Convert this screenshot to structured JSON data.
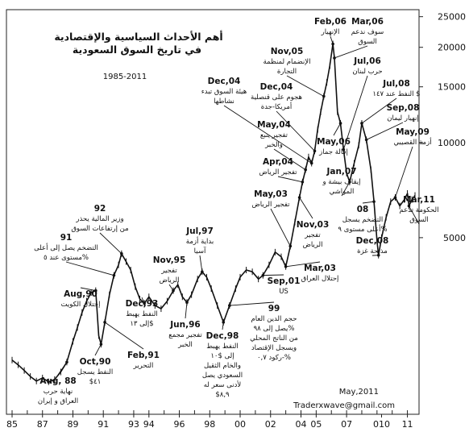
{
  "chart_data": {
    "type": "line",
    "title_line1": "أهم الأحداث السياسية والإقتصادية",
    "title_line2": "في تاريخ السوق السعودية",
    "period": "1985-2011",
    "credit_date": "May,2011",
    "credit_site": "Traderxwave@gmail.com",
    "xlim": [
      1985,
      2011.5
    ],
    "ylim": [
      1500,
      26000
    ],
    "scale": "log",
    "grid": false,
    "y_ticks": [
      5000,
      10000,
      15000,
      20000,
      25000
    ],
    "y_tick_labels": [
      "5000",
      "10000",
      "15000",
      "20000",
      "25000"
    ],
    "x_ticks": [
      {
        "pos": 1985,
        "label": "85"
      },
      {
        "pos": 1987,
        "label": "87"
      },
      {
        "pos": 1989,
        "label": "89"
      },
      {
        "pos": 1991,
        "label": "91"
      },
      {
        "pos": 1993,
        "label": "93"
      },
      {
        "pos": 1994,
        "label": "94"
      },
      {
        "pos": 1996,
        "label": "96"
      },
      {
        "pos": 1998,
        "label": "98"
      },
      {
        "pos": 2000,
        "label": "00"
      },
      {
        "pos": 2002,
        "label": "02"
      },
      {
        "pos": 2004,
        "label": "04"
      },
      {
        "pos": 2005,
        "label": "05"
      },
      {
        "pos": 2007,
        "label": "07"
      },
      {
        "pos": 2009.3,
        "label": "010"
      },
      {
        "pos": 2011,
        "label": "11"
      }
    ],
    "series": [
      {
        "points": [
          [
            1985.0,
            2050
          ],
          [
            1985.4,
            1980
          ],
          [
            1985.8,
            1900
          ],
          [
            1986.2,
            1820
          ],
          [
            1986.6,
            1760
          ],
          [
            1987.0,
            1800
          ],
          [
            1987.4,
            1750
          ],
          [
            1987.8,
            1780
          ],
          [
            1988.2,
            1880
          ],
          [
            1988.6,
            2020
          ],
          [
            1989.0,
            2350
          ],
          [
            1989.3,
            2600
          ],
          [
            1989.6,
            2900
          ],
          [
            1989.9,
            3150
          ],
          [
            1990.2,
            3350
          ],
          [
            1990.5,
            3400
          ],
          [
            1990.7,
            2450
          ],
          [
            1990.85,
            2300
          ],
          [
            1991.1,
            2700
          ],
          [
            1991.4,
            3300
          ],
          [
            1991.7,
            3800
          ],
          [
            1992.0,
            4100
          ],
          [
            1992.2,
            4450
          ],
          [
            1992.5,
            4200
          ],
          [
            1992.8,
            3950
          ],
          [
            1993.1,
            3500
          ],
          [
            1993.4,
            3200
          ],
          [
            1993.7,
            3100
          ],
          [
            1994.0,
            3250
          ],
          [
            1994.4,
            3050
          ],
          [
            1994.8,
            2980
          ],
          [
            1995.2,
            3150
          ],
          [
            1995.6,
            3400
          ],
          [
            1995.9,
            3550
          ],
          [
            1996.2,
            3250
          ],
          [
            1996.5,
            3120
          ],
          [
            1996.8,
            3300
          ],
          [
            1997.2,
            3700
          ],
          [
            1997.5,
            3900
          ],
          [
            1997.8,
            3750
          ],
          [
            1998.1,
            3450
          ],
          [
            1998.5,
            3050
          ],
          [
            1998.9,
            2700
          ],
          [
            1999.3,
            3050
          ],
          [
            1999.7,
            3450
          ],
          [
            2000.0,
            3750
          ],
          [
            2000.4,
            3950
          ],
          [
            2000.8,
            3900
          ],
          [
            2001.2,
            3700
          ],
          [
            2001.5,
            3800
          ],
          [
            2001.9,
            4100
          ],
          [
            2002.3,
            4500
          ],
          [
            2002.7,
            4350
          ],
          [
            2003.0,
            4050
          ],
          [
            2003.3,
            4700
          ],
          [
            2003.6,
            5600
          ],
          [
            2003.9,
            6700
          ],
          [
            2004.1,
            7500
          ],
          [
            2004.3,
            8200
          ],
          [
            2004.5,
            9000
          ],
          [
            2004.7,
            8600
          ],
          [
            2004.9,
            9400
          ],
          [
            2005.1,
            11000
          ],
          [
            2005.3,
            12500
          ],
          [
            2005.5,
            14000
          ],
          [
            2005.7,
            15500
          ],
          [
            2005.9,
            17500
          ],
          [
            2006.1,
            20500
          ],
          [
            2006.2,
            18500
          ],
          [
            2006.4,
            12500
          ],
          [
            2006.6,
            11500
          ],
          [
            2006.8,
            9500
          ],
          [
            2007.0,
            8000
          ],
          [
            2007.2,
            7500
          ],
          [
            2007.5,
            8600
          ],
          [
            2007.8,
            9800
          ],
          [
            2008.0,
            11500
          ],
          [
            2008.3,
            10200
          ],
          [
            2008.6,
            8200
          ],
          [
            2008.8,
            6500
          ],
          [
            2009.0,
            4900
          ],
          [
            2009.1,
            4400
          ],
          [
            2009.3,
            5000
          ],
          [
            2009.6,
            5800
          ],
          [
            2009.9,
            6500
          ],
          [
            2010.2,
            6700
          ],
          [
            2010.5,
            6300
          ],
          [
            2010.8,
            6600
          ],
          [
            2011.0,
            6900
          ],
          [
            2011.1,
            6300
          ],
          [
            2011.3,
            6600
          ],
          [
            2011.5,
            6800
          ]
        ]
      }
    ],
    "annotations": [
      {
        "title": "Aug, 88",
        "body": [
          "نهاية حرب",
          "العراق و إيران"
        ]
      },
      {
        "title": "Aug,90",
        "body": [
          "إحتلال الكويت"
        ]
      },
      {
        "title": "Oct,90",
        "body": [
          "النفط يسجل",
          "$٤١"
        ]
      },
      {
        "title": "91",
        "body": [
          "التضخم يصل إلى أعلى",
          "مستوى عند ٥%"
        ]
      },
      {
        "title": "Feb,91",
        "body": [
          "التحرير"
        ]
      },
      {
        "title": "92",
        "body": [
          "وزير المالية يحذر",
          "من إرتفاعات السوق"
        ]
      },
      {
        "title": "Dec,93",
        "body": [
          "النفط يهبط",
          "إلى ١٣$"
        ]
      },
      {
        "title": "Nov,95",
        "body": [
          "تفجير",
          "الرياض"
        ]
      },
      {
        "title": "Jun,96",
        "body": [
          "تفجير مجمع",
          "الخبر"
        ]
      },
      {
        "title": "Jul,97",
        "body": [
          "بداية أزمة",
          "آسيا"
        ]
      },
      {
        "title": "Dec,98",
        "body": [
          "النفط يهبط",
          "إلى $١٠",
          "والخام الثقيل",
          "السعودي يصل",
          "لأدنى سعر له",
          "$٨,٩"
        ]
      },
      {
        "title": "99",
        "body": [
          "حجم الدين العام",
          "يصل إلى ٩٨%",
          "من الناتج المحلي",
          "ويسجل الإقتصاد",
          "ركود ٠,٧-%"
        ]
      },
      {
        "title": "Sep,01",
        "body": [
          "US"
        ]
      },
      {
        "title": "May,03",
        "body": [
          "تفجير الرياض"
        ]
      },
      {
        "title": "Nov,03",
        "body": [
          "تفجير",
          "الرياض"
        ]
      },
      {
        "title": "Mar,03",
        "body": [
          "إحتلال العراق"
        ]
      },
      {
        "title": "Apr,04",
        "body": [
          "تفجير الرياض"
        ]
      },
      {
        "title": "May,04",
        "body": [
          "تفجير ينبع",
          "والخبر"
        ]
      },
      {
        "title": "Dec,04",
        "body": [
          "هجوم على قنصلية",
          "أمريكا-جدة"
        ]
      },
      {
        "title": "Dec,04",
        "body": [
          "هيئة السوق تبدء",
          "نشاطها"
        ]
      },
      {
        "title": "Nov,05",
        "body": [
          "الإنضمام لمنظمة",
          "التجارة"
        ]
      },
      {
        "title": "Feb,06",
        "body": [
          "الإنهيار"
        ]
      },
      {
        "title": "Mar,06",
        "body": [
          "سوف ندعم",
          "السوق"
        ]
      },
      {
        "title": "May,06",
        "body": [
          "إقالة جماز"
        ]
      },
      {
        "title": "Jul,06",
        "body": [
          "حرب لبنان"
        ]
      },
      {
        "title": "Jan,07",
        "body": [
          "إيقاف بيشة و",
          "المواشي"
        ]
      },
      {
        "title": "Jul,08",
        "body": [
          "النفط عند ١٤٧ $"
        ]
      },
      {
        "title": "Sep,08",
        "body": [
          "إنهيار ليمان"
        ]
      },
      {
        "title": "May,09",
        "body": [
          "أزمة القصيبي"
        ]
      },
      {
        "title": "08",
        "body": [
          "التضخم يسجل",
          "أعلى مستوى ٩%"
        ]
      },
      {
        "title": "Dec,08",
        "body": [
          "مذبحة غزة"
        ]
      },
      {
        "title": "Mar,11",
        "body": [
          "الحكومة تدعم",
          "السوق"
        ]
      }
    ]
  }
}
